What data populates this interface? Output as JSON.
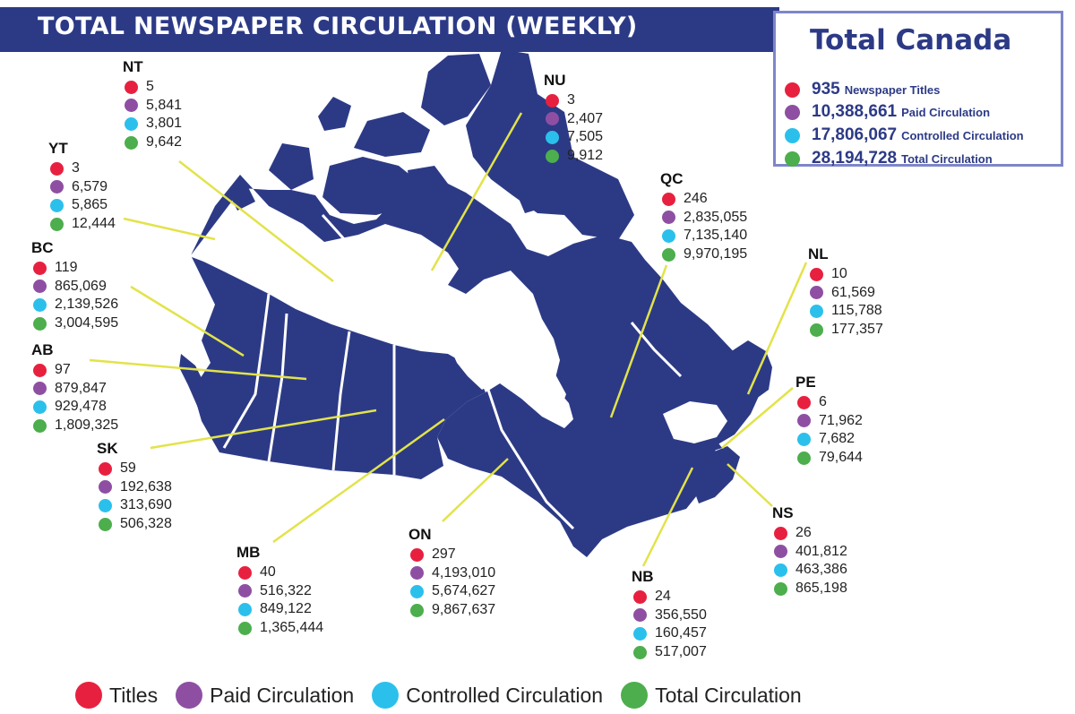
{
  "title": "TOTAL NEWSPAPER CIRCULATION (WEEKLY)",
  "colors": {
    "titles": "#e8203f",
    "paid": "#8e4fa3",
    "controlled": "#2bc0ec",
    "total": "#4cae4c",
    "map_fill": "#2c3a86",
    "leader_line": "#e2e34a"
  },
  "total_canada": {
    "title": "Total Canada",
    "rows": [
      {
        "value": "935",
        "label": "Newspaper  Titles",
        "color": "#e8203f"
      },
      {
        "value": "10,388,661",
        "label": "Paid Circulation",
        "color": "#8e4fa3"
      },
      {
        "value": "17,806,067",
        "label": "Controlled Circulation",
        "color": "#2bc0ec"
      },
      {
        "value": "28,194,728",
        "label": "Total Circulation",
        "color": "#4cae4c"
      }
    ]
  },
  "regions": [
    {
      "code": "NT",
      "titles": "5",
      "paid": "5,841",
      "controlled": "3,801",
      "total": "9,642"
    },
    {
      "code": "YT",
      "titles": "3",
      "paid": "6,579",
      "controlled": "5,865",
      "total": "12,444"
    },
    {
      "code": "BC",
      "titles": "119",
      "paid": "865,069",
      "controlled": "2,139,526",
      "total": "3,004,595"
    },
    {
      "code": "AB",
      "titles": "97",
      "paid": "879,847",
      "controlled": "929,478",
      "total": "1,809,325"
    },
    {
      "code": "SK",
      "titles": "59",
      "paid": "192,638",
      "controlled": "313,690",
      "total": "506,328"
    },
    {
      "code": "MB",
      "titles": "40",
      "paid": "516,322",
      "controlled": "849,122",
      "total": "1,365,444"
    },
    {
      "code": "ON",
      "titles": "297",
      "paid": "4,193,010",
      "controlled": "5,674,627",
      "total": "9,867,637"
    },
    {
      "code": "NU",
      "titles": "3",
      "paid": "2,407",
      "controlled": "7,505",
      "total": "9,912"
    },
    {
      "code": "QC",
      "titles": "246",
      "paid": "2,835,055",
      "controlled": "7,135,140",
      "total": "9,970,195"
    },
    {
      "code": "NL",
      "titles": "10",
      "paid": "61,569",
      "controlled": "115,788",
      "total": "177,357"
    },
    {
      "code": "PE",
      "titles": "6",
      "paid": "71,962",
      "controlled": "7,682",
      "total": "79,644"
    },
    {
      "code": "NS",
      "titles": "26",
      "paid": "401,812",
      "controlled": "463,386",
      "total": "865,198"
    },
    {
      "code": "NB",
      "titles": "24",
      "paid": "356,550",
      "controlled": "160,457",
      "total": "517,007"
    }
  ],
  "legend": [
    {
      "label": "Titles",
      "color": "#e8203f"
    },
    {
      "label": "Paid Circulation",
      "color": "#8e4fa3"
    },
    {
      "label": "Controlled Circulation",
      "color": "#2bc0ec"
    },
    {
      "label": "Total Circulation",
      "color": "#4cae4c"
    }
  ]
}
